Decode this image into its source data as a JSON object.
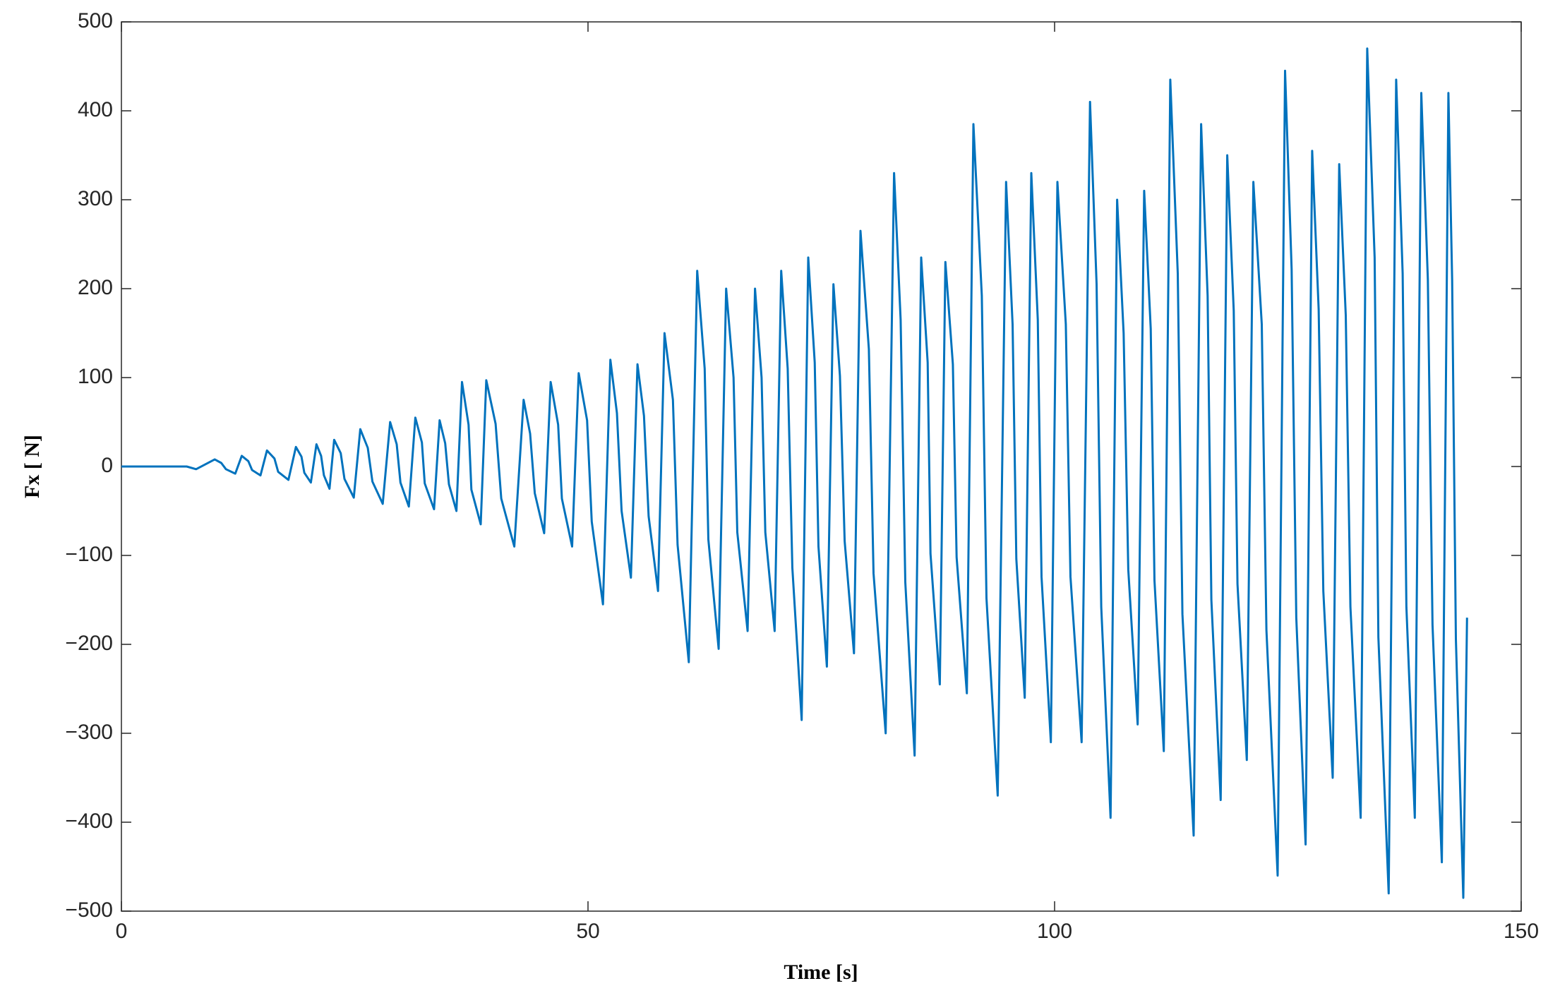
{
  "chart_data": {
    "type": "line",
    "xlabel": "Time [s]",
    "ylabel": "Fx [ N]",
    "xlim": [
      0,
      150
    ],
    "xticks": [
      0,
      50,
      100,
      150
    ],
    "ylim": [
      -500,
      500
    ],
    "yticks": [
      {
        "value": -500,
        "label": "−500"
      },
      {
        "value": -400,
        "label": "−400"
      },
      {
        "value": -300,
        "label": "−300"
      },
      {
        "value": -200,
        "label": "−200"
      },
      {
        "value": -100,
        "label": "−100"
      },
      0,
      100,
      200,
      300,
      400,
      500
    ],
    "grid": false,
    "x": [
      0,
      7,
      8,
      10,
      10.7,
      11.2,
      12.2,
      12.9,
      13.6,
      14,
      14.9,
      15.6,
      16.4,
      16.8,
      17.9,
      18.7,
      19.3,
      19.6,
      20.3,
      20.9,
      21.4,
      21.7,
      22.3,
      22.8,
      23.5,
      23.9,
      24.9,
      25.6,
      26.4,
      26.9,
      28,
      28.8,
      29.5,
      29.9,
      30.8,
      31.5,
      32.2,
      32.5,
      33.5,
      34.1,
      34.7,
      35.1,
      35.9,
      36.5,
      37.2,
      37.5,
      38.5,
      39.1,
      40.1,
      40.7,
      42.1,
      43.1,
      43.8,
      44.3,
      45.3,
      46,
      46.8,
      47.2,
      48.3,
      49,
      49.9,
      50.4,
      51.6,
      52.4,
      53.1,
      53.6,
      54.6,
      55.3,
      56,
      56.5,
      57.5,
      58.2,
      59.1,
      59.6,
      60.8,
      61.7,
      62.5,
      62.9,
      64,
      64.8,
      65.6,
      66,
      67.1,
      67.9,
      68.6,
      69,
      70,
      70.7,
      71.4,
      71.9,
      72.9,
      73.6,
      74.3,
      74.7,
      75.6,
      76.3,
      77,
      77.5,
      78.5,
      79.2,
      80.1,
      80.6,
      81.9,
      82.8,
      83.5,
      84,
      85,
      85.7,
      86.4,
      86.7,
      87.7,
      88.3,
      89.1,
      89.5,
      90.6,
      91.3,
      92.2,
      92.7,
      93.9,
      94.8,
      95.5,
      95.9,
      96.8,
      97.5,
      98.2,
      98.6,
      99.6,
      100.3,
      101.2,
      101.7,
      102.9,
      103.8,
      104.5,
      105,
      106,
      106.7,
      107.4,
      107.9,
      108.9,
      109.6,
      110.3,
      110.7,
      111.7,
      112.4,
      113.2,
      113.7,
      114.9,
      115.7,
      116.4,
      116.8,
      117.8,
      118.5,
      119.2,
      119.6,
      120.6,
      121.3,
      122.2,
      122.7,
      123.9,
      124.7,
      125.4,
      125.9,
      126.9,
      127.6,
      128.3,
      128.8,
      129.8,
      130.5,
      131.2,
      131.7,
      132.8,
      133.5,
      134.3,
      134.7,
      135.8,
      136.6,
      137.3,
      137.7,
      138.6,
      139.3,
      140,
      140.5,
      141.5,
      142.2,
      142.6,
      143,
      143.8,
      144.2
    ],
    "series": [
      {
        "color": "#0072bd",
        "values": [
          0,
          0,
          -3,
          8,
          4,
          -3,
          -8,
          12,
          6,
          -4,
          -10,
          18,
          9,
          -6,
          -15,
          22,
          11,
          -7,
          -18,
          25,
          12,
          -10,
          -25,
          30,
          15,
          -14,
          -35,
          42,
          21,
          -17,
          -42,
          50,
          25,
          -18,
          -45,
          55,
          27,
          -19,
          -48,
          52,
          26,
          -20,
          -50,
          95,
          47,
          -26,
          -65,
          97,
          48,
          -36,
          -90,
          75,
          37,
          -30,
          -75,
          95,
          47,
          -36,
          -90,
          105,
          52,
          -62,
          -155,
          120,
          60,
          -50,
          -125,
          115,
          57,
          -56,
          -140,
          150,
          75,
          -88,
          -220,
          220,
          110,
          -82,
          -205,
          200,
          100,
          -74,
          -185,
          200,
          100,
          -74,
          -185,
          220,
          110,
          -114,
          -285,
          235,
          117,
          -90,
          -225,
          205,
          102,
          -84,
          -210,
          265,
          132,
          -120,
          -300,
          330,
          165,
          -130,
          -325,
          235,
          117,
          -98,
          -245,
          230,
          115,
          -102,
          -255,
          385,
          192,
          -148,
          -370,
          320,
          160,
          -104,
          -260,
          330,
          165,
          -124,
          -310,
          320,
          160,
          -124,
          -310,
          410,
          205,
          -158,
          -395,
          300,
          150,
          -116,
          -290,
          310,
          155,
          -128,
          -320,
          435,
          217,
          -166,
          -415,
          385,
          192,
          -150,
          -375,
          350,
          175,
          -132,
          -330,
          320,
          160,
          -184,
          -460,
          445,
          222,
          -170,
          -425,
          355,
          177,
          -140,
          -350,
          340,
          170,
          -158,
          -395,
          470,
          235,
          -192,
          -480,
          435,
          217,
          -158,
          -395,
          420,
          210,
          -178,
          -445,
          420,
          210,
          -194,
          -485,
          -170
        ]
      }
    ]
  }
}
